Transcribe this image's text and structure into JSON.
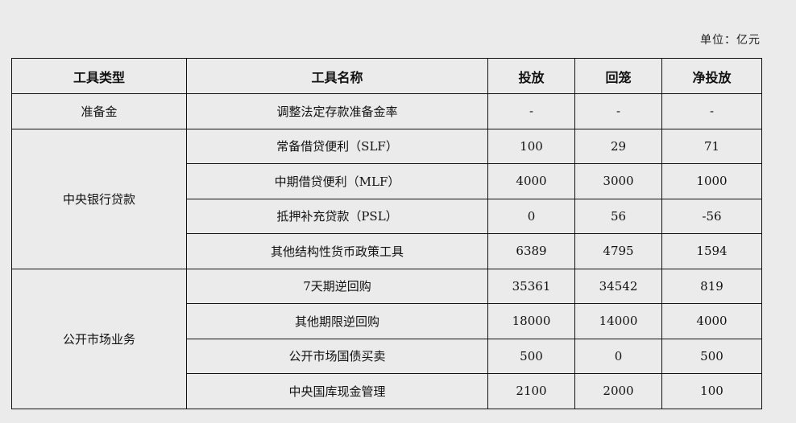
{
  "unit_label": "单位：亿元",
  "headers": [
    "工具类型",
    "工具名称",
    "投放",
    "回笼",
    "净投放"
  ],
  "groups": [
    {
      "type": "准备金",
      "rows": [
        {
          "name": "调整法定存款准备金率",
          "issue": "-",
          "withdraw": "-",
          "net": "-"
        }
      ]
    },
    {
      "type": "中央银行贷款",
      "rows": [
        {
          "name": "常备借贷便利（SLF）",
          "issue": "100",
          "withdraw": "29",
          "net": "71"
        },
        {
          "name": "中期借贷便利（MLF）",
          "issue": "4000",
          "withdraw": "3000",
          "net": "1000"
        },
        {
          "name": "抵押补充贷款（PSL）",
          "issue": "0",
          "withdraw": "56",
          "net": "-56"
        },
        {
          "name": "其他结构性货币政策工具",
          "issue": "6389",
          "withdraw": "4795",
          "net": "1594"
        }
      ]
    },
    {
      "type": "公开市场业务",
      "rows": [
        {
          "name": "7天期逆回购",
          "issue": "35361",
          "withdraw": "34542",
          "net": "819"
        },
        {
          "name": "其他期限逆回购",
          "issue": "18000",
          "withdraw": "14000",
          "net": "4000"
        },
        {
          "name": "公开市场国债买卖",
          "issue": "500",
          "withdraw": "0",
          "net": "500"
        },
        {
          "name": "中央国库现金管理",
          "issue": "2100",
          "withdraw": "2000",
          "net": "100"
        }
      ]
    }
  ]
}
